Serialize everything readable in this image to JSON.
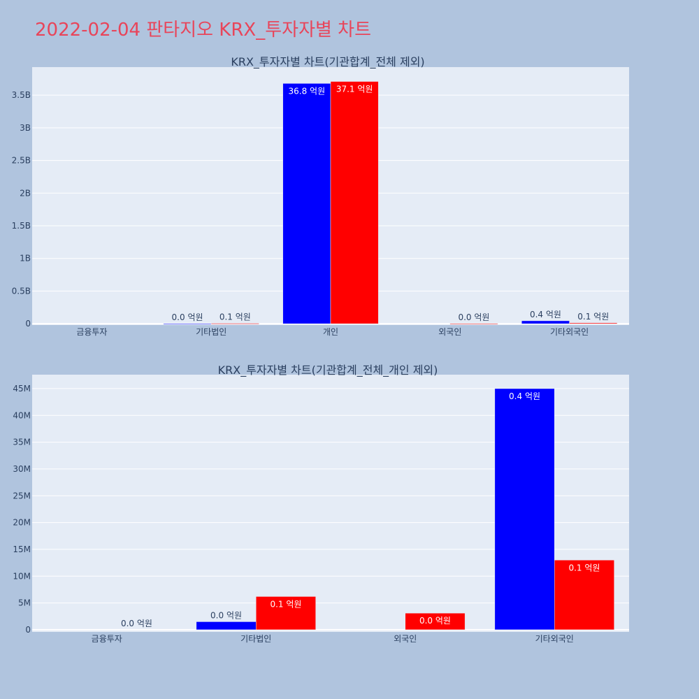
{
  "title": "2022-02-04 판타지오 KRX_투자자별 차트",
  "colors": {
    "buy": "#0000ff",
    "sell": "#ff0000",
    "title": "#e8455a",
    "text": "#2a3f5f"
  },
  "chart_data": [
    {
      "type": "bar",
      "title": "KRX_투자자별 차트(기관합계_전체 제외)",
      "categories": [
        "금융투자",
        "기타법인",
        "개인",
        "외국인",
        "기타외국인"
      ],
      "series": [
        {
          "color": "#0000ff",
          "values": [
            0,
            1500000,
            3680000000,
            0,
            45000000
          ],
          "labels": [
            "",
            "0.0 억원",
            "36.8 억원",
            "",
            "0.4 억원"
          ]
        },
        {
          "color": "#ff0000",
          "values": [
            0,
            6200000,
            3710000000,
            3100000,
            13000000
          ],
          "labels": [
            "",
            "0.1 억원",
            "37.1 억원",
            "0.0 억원",
            "0.1 억원"
          ]
        }
      ],
      "ylim": [
        -20000000,
        3930000000
      ],
      "yticks": [
        0,
        500000000,
        1000000000,
        1500000000,
        2000000000,
        2500000000,
        3000000000,
        3500000000
      ],
      "yticklabels": [
        "0",
        "0.5B",
        "1B",
        "1.5B",
        "2B",
        "2.5B",
        "3B",
        "3.5B"
      ],
      "grid": true,
      "legend": "none"
    },
    {
      "type": "bar",
      "title": "KRX_투자자별 차트(기관합계_전체_개인 제외)",
      "categories": [
        "금융투자",
        "기타법인",
        "외국인",
        "기타외국인"
      ],
      "series": [
        {
          "color": "#0000ff",
          "values": [
            0,
            1500000,
            0,
            45000000
          ],
          "labels": [
            "",
            "0.0 억원",
            "",
            "0.4 억원"
          ]
        },
        {
          "color": "#ff0000",
          "values": [
            0,
            6200000,
            3100000,
            13000000
          ],
          "labels": [
            "0.0 억원",
            "0.1 억원",
            "0.0 억원",
            "0.1 억원"
          ]
        }
      ],
      "ylim": [
        -400000,
        47600000
      ],
      "yticks": [
        0,
        5000000,
        10000000,
        15000000,
        20000000,
        25000000,
        30000000,
        35000000,
        40000000,
        45000000
      ],
      "yticklabels": [
        "0",
        "5M",
        "10M",
        "15M",
        "20M",
        "25M",
        "30M",
        "35M",
        "40M",
        "45M"
      ],
      "grid": true,
      "legend": "none"
    }
  ]
}
